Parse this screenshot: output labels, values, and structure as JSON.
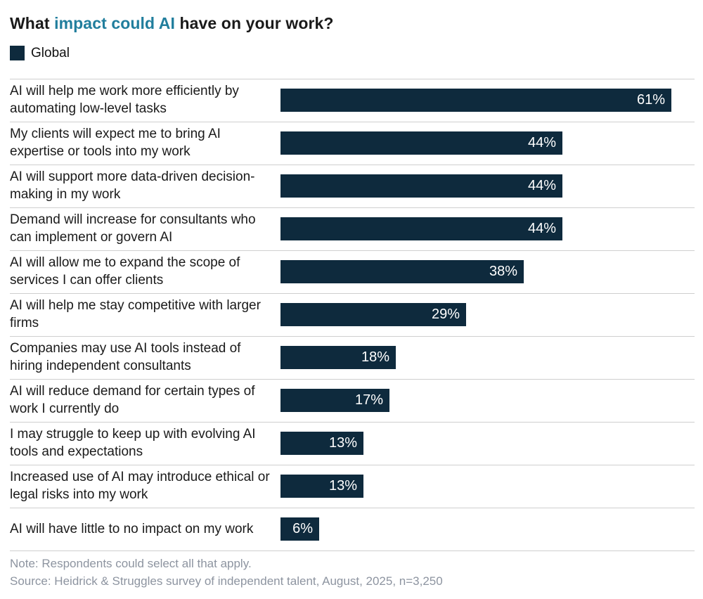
{
  "title": {
    "prefix": "What ",
    "highlight": "impact could AI",
    "suffix": " have on your work?"
  },
  "legend": {
    "label": "Global"
  },
  "chart_data": {
    "type": "bar",
    "orientation": "horizontal",
    "title": "What impact could AI have on your work?",
    "legend_entries": [
      "Global"
    ],
    "legend_position": "top-left",
    "unit": "%",
    "xlim": [
      0,
      65
    ],
    "grid": false,
    "categories": [
      "AI will help me work more efficiently by automating low-level tasks",
      "My clients will expect me to bring AI expertise or tools into my work",
      "AI will support more data-driven decision-making in my work",
      "Demand will increase for consultants who can implement or govern AI",
      "AI will allow me to expand the scope of services I can offer clients",
      "AI will help me stay competitive with larger firms",
      "Companies may use AI tools instead of hiring independent consultants",
      "AI will reduce demand for certain types of work I currently do",
      "I may struggle to keep up with evolving AI tools and expectations",
      "Increased use of AI may introduce ethical or legal risks into my work",
      "AI will have little to no impact on my work"
    ],
    "values": [
      61,
      44,
      44,
      44,
      38,
      29,
      18,
      17,
      13,
      13,
      6
    ],
    "labels": [
      "61%",
      "44%",
      "44%",
      "44%",
      "38%",
      "29%",
      "18%",
      "17%",
      "13%",
      "13%",
      "6%"
    ]
  },
  "footer": {
    "note": "Note: Respondents could select all that apply.",
    "source": "Source: Heidrick & Struggles survey of independent talent, August, 2025, n=3,250"
  },
  "colors": {
    "bar": "#0e2a3d",
    "accent": "#217e9d",
    "value_text": "#ffffff",
    "note_text": "#8d94a0",
    "separator": "#cfcfcf"
  }
}
